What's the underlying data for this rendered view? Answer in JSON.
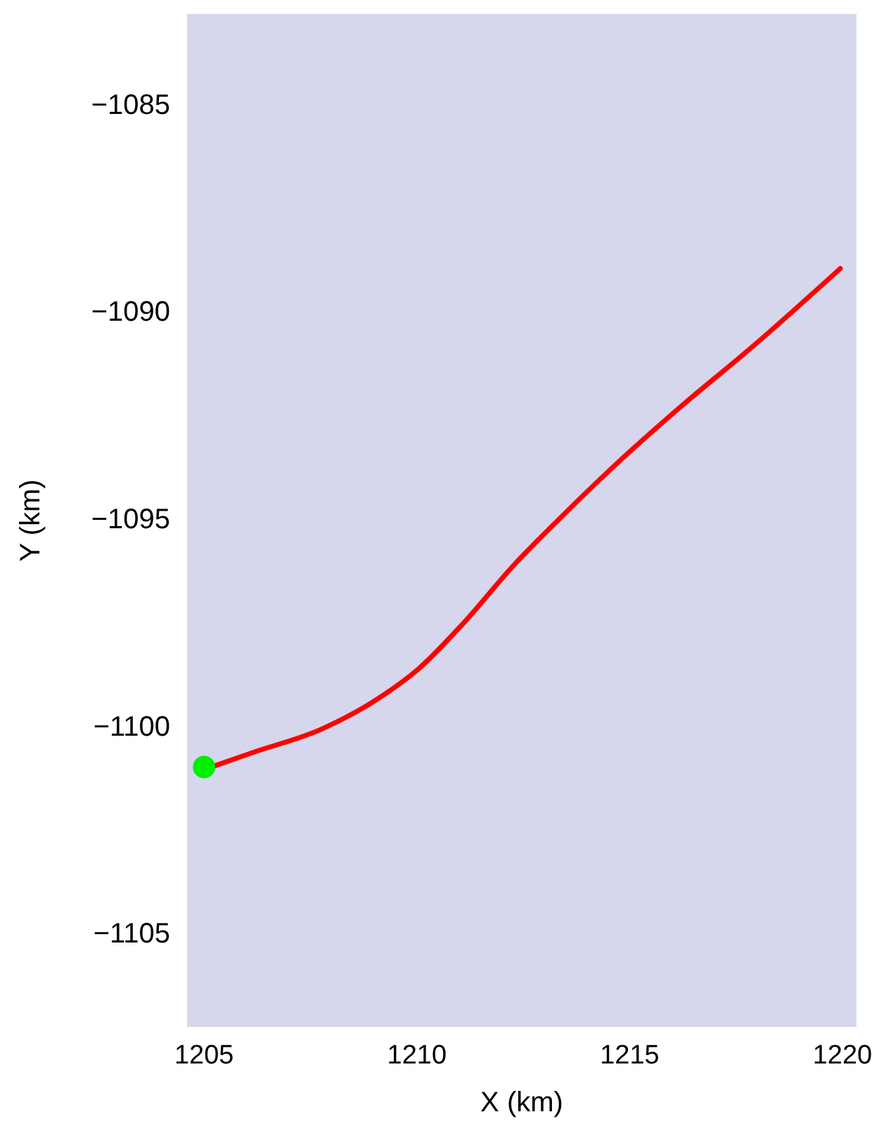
{
  "chart_data": {
    "type": "line",
    "xlabel": "X (km)",
    "ylabel": "Y (km)",
    "xlim": [
      1204.6,
      1220.33
    ],
    "ylim": [
      -1107.27,
      -1082.83
    ],
    "xticks": [
      1205,
      1210,
      1215,
      1220
    ],
    "yticks": [
      {
        "value": -1105,
        "label": "−1105"
      },
      {
        "value": -1100,
        "label": "−1100"
      },
      {
        "value": -1095,
        "label": "−1095"
      },
      {
        "value": -1090,
        "label": "−1090"
      },
      {
        "value": -1085,
        "label": "−1085"
      }
    ],
    "grid": false,
    "series": [
      {
        "color": "#ff0000",
        "marker": "none",
        "x": [
          1205,
          1206.14,
          1207.77,
          1209.07,
          1210.05,
          1211.03,
          1212.33,
          1213.31,
          1214.61,
          1216.24,
          1217.87,
          1219.95
        ],
        "values": [
          -1101.06,
          -1100.65,
          -1100.08,
          -1099.36,
          -1098.62,
          -1097.6,
          -1096.07,
          -1095.05,
          -1093.76,
          -1092.27,
          -1090.87,
          -1088.97
        ]
      },
      {
        "type": "scatter",
        "color": "#00ee00",
        "marker": "circle",
        "x": [
          1205
        ],
        "values": [
          -1101.0
        ]
      }
    ]
  }
}
